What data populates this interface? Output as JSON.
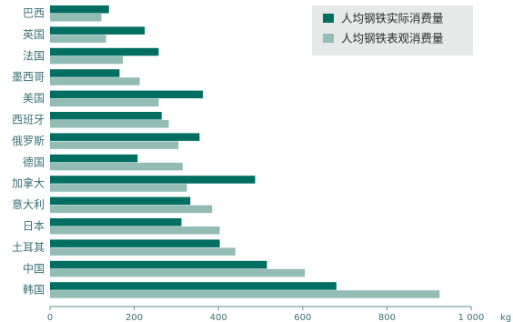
{
  "chart_data": {
    "type": "bar",
    "orientation": "horizontal",
    "title": "",
    "categories": [
      "巴西",
      "英国",
      "法国",
      "墨西哥",
      "美国",
      "西班牙",
      "俄罗斯",
      "德国",
      "加拿大",
      "意大利",
      "日本",
      "土耳其",
      "中国",
      "韩国"
    ],
    "series": [
      {
        "name": "人均钢铁实际消费量",
        "color": "#006e61",
        "values": [
          140,
          225,
          258,
          165,
          363,
          265,
          355,
          208,
          487,
          333,
          312,
          403,
          515,
          680
        ]
      },
      {
        "name": "人均钢铁表观消费量",
        "color": "#93bcb4",
        "values": [
          122,
          133,
          173,
          213,
          258,
          282,
          305,
          315,
          325,
          385,
          403,
          440,
          605,
          925
        ]
      }
    ],
    "xlim": [
      0,
      1000
    ],
    "xticks": [
      0,
      200,
      400,
      600,
      800,
      1000
    ],
    "xtick_labels": [
      "0",
      "200",
      "400",
      "600",
      "800",
      "1 000"
    ],
    "x_unit": "kg",
    "grid": false,
    "legend_position": "top-right"
  }
}
